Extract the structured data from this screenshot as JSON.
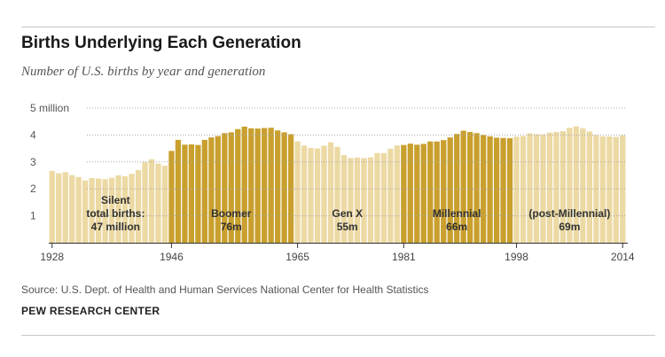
{
  "title": "Births Underlying Each Generation",
  "subtitle": "Number of U.S. births by year and generation",
  "source": "Source: U.S. Dept. of Health and Human Services National Center for Health Statistics",
  "org": "PEW RESEARCH CENTER",
  "colors": {
    "light": "#ecd9a3",
    "dark": "#c9a02e",
    "grid": "#a8a8a8"
  },
  "chart_data": {
    "type": "bar",
    "y_ticks": [
      "1",
      "2",
      "3",
      "4",
      "5 million"
    ],
    "y_tick_values": [
      1,
      2,
      3,
      4,
      5
    ],
    "ylim": [
      0,
      5
    ],
    "x_tick_labels": [
      "1928",
      "1946",
      "1965",
      "1981",
      "1998",
      "2014"
    ],
    "x_tick_years": [
      1928,
      1946,
      1965,
      1981,
      1998,
      2014
    ],
    "unit": "million",
    "grid": true,
    "generations": [
      {
        "name": "Silent",
        "label_lines": [
          "Silent",
          "total births:",
          "47 million"
        ],
        "start": 1928,
        "end": 1945,
        "shade": "light"
      },
      {
        "name": "Boomer",
        "label_lines": [
          "Boomer",
          "76m"
        ],
        "start": 1946,
        "end": 1964,
        "shade": "dark"
      },
      {
        "name": "Gen X",
        "label_lines": [
          "Gen X",
          "55m"
        ],
        "start": 1965,
        "end": 1980,
        "shade": "light"
      },
      {
        "name": "Millennial",
        "label_lines": [
          "Millennial",
          "66m"
        ],
        "start": 1981,
        "end": 1997,
        "shade": "dark"
      },
      {
        "name": "(post-Millennial)",
        "label_lines": [
          "(post-Millennial)",
          "69m"
        ],
        "start": 1998,
        "end": 2014,
        "shade": "light"
      }
    ],
    "years": [
      1928,
      1929,
      1930,
      1931,
      1932,
      1933,
      1934,
      1935,
      1936,
      1937,
      1938,
      1939,
      1940,
      1941,
      1942,
      1943,
      1944,
      1945,
      1946,
      1947,
      1948,
      1949,
      1950,
      1951,
      1952,
      1953,
      1954,
      1955,
      1956,
      1957,
      1958,
      1959,
      1960,
      1961,
      1962,
      1963,
      1964,
      1965,
      1966,
      1967,
      1968,
      1969,
      1970,
      1971,
      1972,
      1973,
      1974,
      1975,
      1976,
      1977,
      1978,
      1979,
      1980,
      1981,
      1982,
      1983,
      1984,
      1985,
      1986,
      1987,
      1988,
      1989,
      1990,
      1991,
      1992,
      1993,
      1994,
      1995,
      1996,
      1997,
      1998,
      1999,
      2000,
      2001,
      2002,
      2003,
      2004,
      2005,
      2006,
      2007,
      2008,
      2009,
      2010,
      2011,
      2012,
      2013,
      2014
    ],
    "values": [
      2.67,
      2.58,
      2.62,
      2.51,
      2.44,
      2.31,
      2.4,
      2.38,
      2.36,
      2.41,
      2.5,
      2.47,
      2.56,
      2.7,
      2.99,
      3.1,
      2.94,
      2.86,
      3.41,
      3.82,
      3.64,
      3.65,
      3.63,
      3.82,
      3.91,
      3.96,
      4.07,
      4.1,
      4.22,
      4.31,
      4.25,
      4.24,
      4.26,
      4.27,
      4.17,
      4.1,
      4.03,
      3.76,
      3.61,
      3.52,
      3.5,
      3.6,
      3.73,
      3.56,
      3.26,
      3.14,
      3.16,
      3.14,
      3.17,
      3.33,
      3.33,
      3.49,
      3.61,
      3.63,
      3.68,
      3.64,
      3.67,
      3.76,
      3.76,
      3.81,
      3.91,
      4.04,
      4.16,
      4.11,
      4.07,
      4.0,
      3.95,
      3.9,
      3.89,
      3.88,
      3.94,
      3.96,
      4.06,
      4.03,
      4.02,
      4.09,
      4.11,
      4.14,
      4.27,
      4.32,
      4.25,
      4.13,
      4.0,
      3.95,
      3.95,
      3.93,
      3.99
    ]
  }
}
